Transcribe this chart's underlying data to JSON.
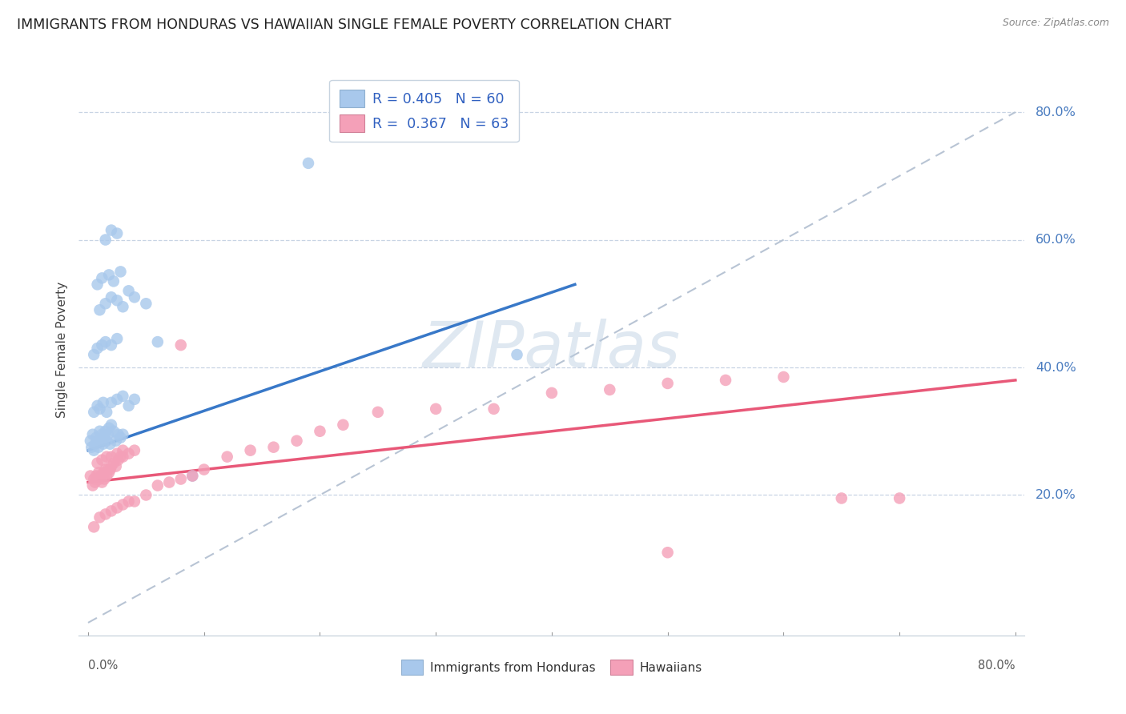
{
  "title": "IMMIGRANTS FROM HONDURAS VS HAWAIIAN SINGLE FEMALE POVERTY CORRELATION CHART",
  "source": "Source: ZipAtlas.com",
  "ylabel": "Single Female Poverty",
  "ytick_labels": [
    "20.0%",
    "40.0%",
    "60.0%",
    "80.0%"
  ],
  "ytick_values": [
    0.2,
    0.4,
    0.6,
    0.8
  ],
  "series1_color": "#a8c8ec",
  "series2_color": "#f4a0b8",
  "trendline1_color": "#3878c8",
  "trendline2_color": "#e85878",
  "dashed_line_color": "#b8c4d4",
  "watermark_text": "ZIPatlas",
  "R1": 0.405,
  "N1": 60,
  "R2": 0.367,
  "N2": 63,
  "blue_x": [
    0.002,
    0.003,
    0.004,
    0.005,
    0.006,
    0.007,
    0.008,
    0.009,
    0.01,
    0.011,
    0.012,
    0.013,
    0.014,
    0.015,
    0.016,
    0.017,
    0.018,
    0.019,
    0.02,
    0.022,
    0.024,
    0.026,
    0.028,
    0.03,
    0.005,
    0.008,
    0.01,
    0.013,
    0.016,
    0.02,
    0.025,
    0.03,
    0.035,
    0.04,
    0.005,
    0.008,
    0.012,
    0.015,
    0.02,
    0.025,
    0.01,
    0.015,
    0.02,
    0.025,
    0.03,
    0.008,
    0.012,
    0.018,
    0.022,
    0.028,
    0.015,
    0.02,
    0.025,
    0.035,
    0.04,
    0.05,
    0.06,
    0.09,
    0.19,
    0.37
  ],
  "blue_y": [
    0.285,
    0.275,
    0.295,
    0.27,
    0.28,
    0.29,
    0.285,
    0.275,
    0.3,
    0.285,
    0.295,
    0.28,
    0.29,
    0.3,
    0.285,
    0.295,
    0.305,
    0.28,
    0.31,
    0.3,
    0.285,
    0.295,
    0.29,
    0.295,
    0.33,
    0.34,
    0.335,
    0.345,
    0.33,
    0.345,
    0.35,
    0.355,
    0.34,
    0.35,
    0.42,
    0.43,
    0.435,
    0.44,
    0.435,
    0.445,
    0.49,
    0.5,
    0.51,
    0.505,
    0.495,
    0.53,
    0.54,
    0.545,
    0.535,
    0.55,
    0.6,
    0.615,
    0.61,
    0.52,
    0.51,
    0.5,
    0.44,
    0.23,
    0.72,
    0.42
  ],
  "pink_x": [
    0.002,
    0.004,
    0.005,
    0.006,
    0.007,
    0.008,
    0.009,
    0.01,
    0.011,
    0.012,
    0.013,
    0.014,
    0.015,
    0.016,
    0.017,
    0.018,
    0.019,
    0.02,
    0.022,
    0.024,
    0.026,
    0.028,
    0.03,
    0.035,
    0.04,
    0.008,
    0.012,
    0.016,
    0.02,
    0.025,
    0.03,
    0.005,
    0.01,
    0.015,
    0.02,
    0.025,
    0.03,
    0.035,
    0.04,
    0.05,
    0.06,
    0.07,
    0.08,
    0.09,
    0.1,
    0.12,
    0.14,
    0.16,
    0.18,
    0.2,
    0.22,
    0.25,
    0.3,
    0.35,
    0.4,
    0.45,
    0.5,
    0.55,
    0.6,
    0.65,
    0.7,
    0.08,
    0.5
  ],
  "pink_y": [
    0.23,
    0.215,
    0.225,
    0.22,
    0.23,
    0.225,
    0.235,
    0.225,
    0.23,
    0.22,
    0.235,
    0.225,
    0.24,
    0.23,
    0.24,
    0.235,
    0.24,
    0.245,
    0.25,
    0.245,
    0.255,
    0.26,
    0.26,
    0.265,
    0.27,
    0.25,
    0.255,
    0.26,
    0.26,
    0.265,
    0.27,
    0.15,
    0.165,
    0.17,
    0.175,
    0.18,
    0.185,
    0.19,
    0.19,
    0.2,
    0.215,
    0.22,
    0.225,
    0.23,
    0.24,
    0.26,
    0.27,
    0.275,
    0.285,
    0.3,
    0.31,
    0.33,
    0.335,
    0.335,
    0.36,
    0.365,
    0.375,
    0.38,
    0.385,
    0.195,
    0.195,
    0.435,
    0.11
  ]
}
